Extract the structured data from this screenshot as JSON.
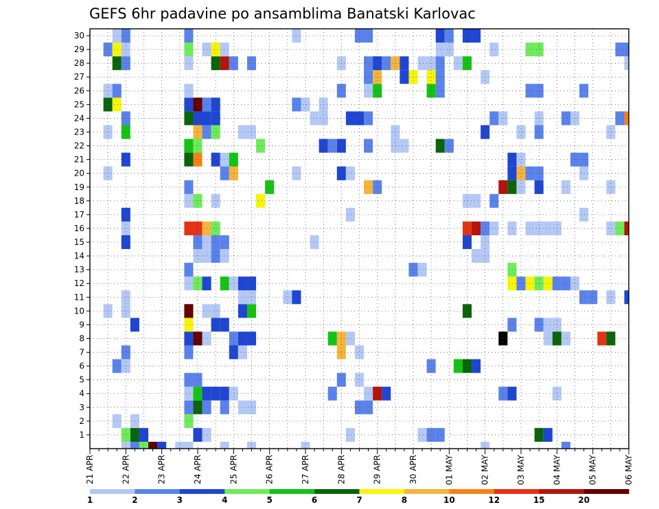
{
  "chart_data": {
    "type": "heatmap",
    "title": "GEFS 6hr padavine po ansamblima Banatski Karlovac",
    "x_ticks": [
      "21 APR",
      "22 APR",
      "23 APR",
      "24 APR",
      "25 APR",
      "26 APR",
      "27 APR",
      "28 APR",
      "29 APR",
      "30 APR",
      "01 MAY",
      "02 MAY",
      "03 MAY",
      "04 MAY",
      "05 MAY",
      "06 MAY"
    ],
    "x_range": [
      0,
      60
    ],
    "y_ticks": [
      "1",
      "2",
      "3",
      "4",
      "5",
      "6",
      "7",
      "8",
      "9",
      "10",
      "11",
      "12",
      "13",
      "14",
      "15",
      "16",
      "17",
      "18",
      "19",
      "20",
      "21",
      "22",
      "23",
      "24",
      "25",
      "26",
      "27",
      "28",
      "29",
      "30"
    ],
    "y_range": [
      0,
      30
    ],
    "grid": true,
    "legend": {
      "placement": "bottom",
      "labels": [
        "1",
        "2",
        "3",
        "4",
        "5",
        "6",
        "7",
        "8",
        "10",
        "12",
        "15",
        "20"
      ],
      "colors": [
        "#b4c8f5",
        "#5a82eb",
        "#1e46d2",
        "#6eeb5a",
        "#14c314",
        "#0a640a",
        "#f5f50a",
        "#f5b43c",
        "#f58214",
        "#e63214",
        "#b4140a",
        "#640000"
      ]
    },
    "cells": [
      [
        0,
        4,
        0
      ],
      [
        0,
        5,
        1
      ],
      [
        0,
        6,
        3
      ],
      [
        0,
        7,
        11
      ],
      [
        0,
        8,
        2
      ],
      [
        0,
        10,
        0
      ],
      [
        0,
        11,
        0
      ],
      [
        0,
        15,
        0
      ],
      [
        0,
        18,
        0
      ],
      [
        0,
        24,
        0
      ],
      [
        0,
        44,
        0
      ],
      [
        0,
        53,
        1
      ],
      [
        1,
        4,
        3
      ],
      [
        1,
        5,
        5
      ],
      [
        1,
        6,
        2
      ],
      [
        1,
        12,
        2
      ],
      [
        1,
        13,
        0
      ],
      [
        1,
        29,
        0
      ],
      [
        1,
        37,
        0
      ],
      [
        1,
        38,
        1
      ],
      [
        1,
        39,
        1
      ],
      [
        1,
        50,
        5
      ],
      [
        1,
        51,
        2
      ],
      [
        2,
        3,
        0
      ],
      [
        2,
        5,
        0
      ],
      [
        2,
        11,
        3
      ],
      [
        3,
        11,
        1
      ],
      [
        3,
        12,
        5
      ],
      [
        3,
        13,
        1
      ],
      [
        3,
        15,
        1
      ],
      [
        3,
        17,
        0
      ],
      [
        3,
        18,
        0
      ],
      [
        3,
        30,
        1
      ],
      [
        3,
        31,
        1
      ],
      [
        4,
        11,
        0
      ],
      [
        4,
        12,
        4
      ],
      [
        4,
        13,
        2
      ],
      [
        4,
        14,
        2
      ],
      [
        4,
        15,
        2
      ],
      [
        4,
        16,
        0
      ],
      [
        4,
        27,
        1
      ],
      [
        4,
        31,
        0
      ],
      [
        4,
        32,
        10
      ],
      [
        4,
        33,
        2
      ],
      [
        4,
        46,
        1
      ],
      [
        4,
        47,
        2
      ],
      [
        4,
        52,
        0
      ],
      [
        5,
        11,
        1
      ],
      [
        5,
        12,
        1
      ],
      [
        5,
        28,
        1
      ],
      [
        5,
        30,
        0
      ],
      [
        6,
        3,
        1
      ],
      [
        6,
        4,
        0
      ],
      [
        6,
        38,
        1
      ],
      [
        6,
        41,
        4
      ],
      [
        6,
        42,
        5
      ],
      [
        6,
        43,
        2
      ],
      [
        7,
        4,
        1
      ],
      [
        7,
        11,
        1
      ],
      [
        7,
        16,
        2
      ],
      [
        7,
        17,
        0
      ],
      [
        7,
        28,
        7
      ],
      [
        7,
        30,
        0
      ],
      [
        8,
        11,
        2
      ],
      [
        8,
        12,
        11
      ],
      [
        8,
        13,
        0
      ],
      [
        8,
        16,
        1
      ],
      [
        8,
        17,
        2
      ],
      [
        8,
        18,
        2
      ],
      [
        8,
        27,
        4
      ],
      [
        8,
        28,
        7
      ],
      [
        8,
        29,
        0
      ],
      [
        8,
        46,
        12
      ],
      [
        8,
        51,
        0
      ],
      [
        8,
        52,
        5
      ],
      [
        8,
        53,
        0
      ],
      [
        8,
        57,
        9
      ],
      [
        8,
        58,
        5
      ],
      [
        9,
        5,
        2
      ],
      [
        9,
        11,
        6
      ],
      [
        9,
        14,
        2
      ],
      [
        9,
        15,
        2
      ],
      [
        9,
        47,
        1
      ],
      [
        9,
        50,
        1
      ],
      [
        9,
        51,
        0
      ],
      [
        9,
        52,
        0
      ],
      [
        10,
        2,
        0
      ],
      [
        10,
        4,
        0
      ],
      [
        10,
        11,
        11
      ],
      [
        10,
        13,
        0
      ],
      [
        10,
        14,
        0
      ],
      [
        10,
        17,
        2
      ],
      [
        10,
        18,
        4
      ],
      [
        10,
        42,
        5
      ],
      [
        11,
        4,
        0
      ],
      [
        11,
        17,
        0
      ],
      [
        11,
        18,
        0
      ],
      [
        11,
        22,
        0
      ],
      [
        11,
        23,
        2
      ],
      [
        11,
        55,
        1
      ],
      [
        11,
        56,
        1
      ],
      [
        11,
        58,
        0
      ],
      [
        11,
        60,
        2
      ],
      [
        12,
        11,
        0
      ],
      [
        12,
        12,
        3
      ],
      [
        12,
        13,
        2
      ],
      [
        12,
        15,
        4
      ],
      [
        12,
        16,
        0
      ],
      [
        12,
        17,
        2
      ],
      [
        12,
        18,
        2
      ],
      [
        12,
        47,
        6
      ],
      [
        12,
        48,
        1
      ],
      [
        12,
        49,
        6
      ],
      [
        12,
        50,
        3
      ],
      [
        12,
        51,
        6
      ],
      [
        12,
        52,
        1
      ],
      [
        12,
        53,
        1
      ],
      [
        12,
        54,
        0
      ],
      [
        13,
        11,
        1
      ],
      [
        13,
        36,
        1
      ],
      [
        13,
        37,
        0
      ],
      [
        13,
        47,
        3
      ],
      [
        14,
        12,
        0
      ],
      [
        14,
        13,
        0
      ],
      [
        14,
        14,
        1
      ],
      [
        14,
        15,
        0
      ],
      [
        14,
        43,
        0
      ],
      [
        14,
        44,
        0
      ],
      [
        15,
        4,
        2
      ],
      [
        15,
        12,
        1
      ],
      [
        15,
        13,
        0
      ],
      [
        15,
        14,
        1
      ],
      [
        15,
        15,
        1
      ],
      [
        15,
        25,
        0
      ],
      [
        15,
        42,
        2
      ],
      [
        15,
        44,
        0
      ],
      [
        16,
        4,
        0
      ],
      [
        16,
        11,
        9
      ],
      [
        16,
        12,
        9
      ],
      [
        16,
        13,
        7
      ],
      [
        16,
        14,
        3
      ],
      [
        16,
        42,
        9
      ],
      [
        16,
        43,
        10
      ],
      [
        16,
        44,
        1
      ],
      [
        16,
        45,
        0
      ],
      [
        16,
        47,
        0
      ],
      [
        16,
        49,
        0
      ],
      [
        16,
        50,
        0
      ],
      [
        16,
        51,
        0
      ],
      [
        16,
        52,
        0
      ],
      [
        16,
        58,
        0
      ],
      [
        16,
        59,
        3
      ],
      [
        16,
        60,
        10
      ],
      [
        17,
        4,
        2
      ],
      [
        17,
        29,
        0
      ],
      [
        17,
        55,
        0
      ],
      [
        18,
        11,
        0
      ],
      [
        18,
        12,
        3
      ],
      [
        18,
        14,
        0
      ],
      [
        18,
        19,
        6
      ],
      [
        18,
        42,
        0
      ],
      [
        18,
        43,
        0
      ],
      [
        18,
        45,
        1
      ],
      [
        19,
        11,
        1
      ],
      [
        19,
        20,
        4
      ],
      [
        19,
        31,
        7
      ],
      [
        19,
        32,
        1
      ],
      [
        19,
        46,
        10
      ],
      [
        19,
        47,
        5
      ],
      [
        19,
        48,
        0
      ],
      [
        19,
        50,
        2
      ],
      [
        19,
        53,
        0
      ],
      [
        19,
        58,
        0
      ],
      [
        20,
        2,
        0
      ],
      [
        20,
        15,
        1
      ],
      [
        20,
        16,
        7
      ],
      [
        20,
        23,
        0
      ],
      [
        20,
        28,
        2
      ],
      [
        20,
        29,
        0
      ],
      [
        20,
        47,
        2
      ],
      [
        20,
        48,
        7
      ],
      [
        20,
        49,
        1
      ],
      [
        20,
        50,
        1
      ],
      [
        20,
        55,
        0
      ],
      [
        21,
        4,
        2
      ],
      [
        21,
        11,
        5
      ],
      [
        21,
        12,
        8
      ],
      [
        21,
        14,
        2
      ],
      [
        21,
        15,
        0
      ],
      [
        21,
        16,
        4
      ],
      [
        21,
        54,
        1
      ],
      [
        21,
        55,
        1
      ],
      [
        21,
        47,
        2
      ],
      [
        21,
        48,
        0
      ],
      [
        22,
        11,
        4
      ],
      [
        22,
        12,
        3
      ],
      [
        22,
        19,
        3
      ],
      [
        22,
        26,
        2
      ],
      [
        22,
        27,
        1
      ],
      [
        22,
        28,
        2
      ],
      [
        22,
        31,
        1
      ],
      [
        22,
        34,
        0
      ],
      [
        22,
        35,
        0
      ],
      [
        22,
        39,
        5
      ],
      [
        22,
        40,
        1
      ],
      [
        23,
        2,
        0
      ],
      [
        23,
        4,
        4
      ],
      [
        23,
        12,
        7
      ],
      [
        23,
        13,
        1
      ],
      [
        23,
        14,
        3
      ],
      [
        23,
        17,
        0
      ],
      [
        23,
        18,
        0
      ],
      [
        23,
        34,
        0
      ],
      [
        23,
        44,
        2
      ],
      [
        23,
        48,
        0
      ],
      [
        23,
        50,
        1
      ],
      [
        23,
        58,
        0
      ],
      [
        24,
        4,
        1
      ],
      [
        24,
        11,
        5
      ],
      [
        24,
        12,
        2
      ],
      [
        24,
        13,
        2
      ],
      [
        24,
        14,
        2
      ],
      [
        24,
        25,
        0
      ],
      [
        24,
        26,
        0
      ],
      [
        24,
        29,
        2
      ],
      [
        24,
        30,
        2
      ],
      [
        24,
        31,
        1
      ],
      [
        24,
        45,
        1
      ],
      [
        24,
        46,
        0
      ],
      [
        24,
        50,
        0
      ],
      [
        24,
        53,
        1
      ],
      [
        24,
        54,
        0
      ],
      [
        24,
        59,
        1
      ],
      [
        24,
        60,
        8
      ],
      [
        25,
        2,
        5
      ],
      [
        25,
        3,
        6
      ],
      [
        25,
        11,
        2
      ],
      [
        25,
        12,
        11
      ],
      [
        25,
        13,
        1
      ],
      [
        25,
        14,
        2
      ],
      [
        25,
        23,
        1
      ],
      [
        25,
        24,
        0
      ],
      [
        25,
        26,
        0
      ],
      [
        26,
        2,
        0
      ],
      [
        26,
        3,
        1
      ],
      [
        26,
        11,
        0
      ],
      [
        26,
        28,
        1
      ],
      [
        26,
        31,
        0
      ],
      [
        26,
        32,
        4
      ],
      [
        26,
        38,
        4
      ],
      [
        26,
        39,
        1
      ],
      [
        26,
        49,
        1
      ],
      [
        26,
        50,
        1
      ],
      [
        26,
        55,
        1
      ],
      [
        27,
        31,
        1
      ],
      [
        27,
        32,
        7
      ],
      [
        27,
        35,
        2
      ],
      [
        27,
        36,
        6
      ],
      [
        27,
        38,
        6
      ],
      [
        27,
        39,
        1
      ],
      [
        27,
        44,
        0
      ],
      [
        28,
        3,
        5
      ],
      [
        28,
        4,
        1
      ],
      [
        28,
        11,
        0
      ],
      [
        28,
        14,
        5
      ],
      [
        28,
        15,
        10
      ],
      [
        28,
        16,
        1
      ],
      [
        28,
        18,
        1
      ],
      [
        28,
        28,
        0
      ],
      [
        28,
        31,
        1
      ],
      [
        28,
        32,
        2
      ],
      [
        28,
        33,
        1
      ],
      [
        28,
        34,
        7
      ],
      [
        28,
        35,
        2
      ],
      [
        28,
        37,
        0
      ],
      [
        28,
        38,
        0
      ],
      [
        28,
        39,
        1
      ],
      [
        28,
        41,
        0
      ],
      [
        28,
        42,
        4
      ],
      [
        28,
        60,
        0
      ],
      [
        29,
        2,
        1
      ],
      [
        29,
        3,
        6
      ],
      [
        29,
        4,
        0
      ],
      [
        29,
        11,
        3
      ],
      [
        29,
        13,
        0
      ],
      [
        29,
        14,
        6
      ],
      [
        29,
        15,
        0
      ],
      [
        29,
        39,
        0
      ],
      [
        29,
        40,
        0
      ],
      [
        29,
        45,
        0
      ],
      [
        29,
        49,
        3
      ],
      [
        29,
        50,
        3
      ],
      [
        29,
        59,
        1
      ],
      [
        29,
        60,
        1
      ],
      [
        30,
        3,
        0
      ],
      [
        30,
        4,
        1
      ],
      [
        30,
        11,
        1
      ],
      [
        30,
        23,
        0
      ],
      [
        30,
        30,
        1
      ],
      [
        30,
        31,
        1
      ],
      [
        30,
        39,
        2
      ],
      [
        30,
        40,
        1
      ],
      [
        30,
        42,
        2
      ],
      [
        30,
        43,
        2
      ]
    ]
  }
}
